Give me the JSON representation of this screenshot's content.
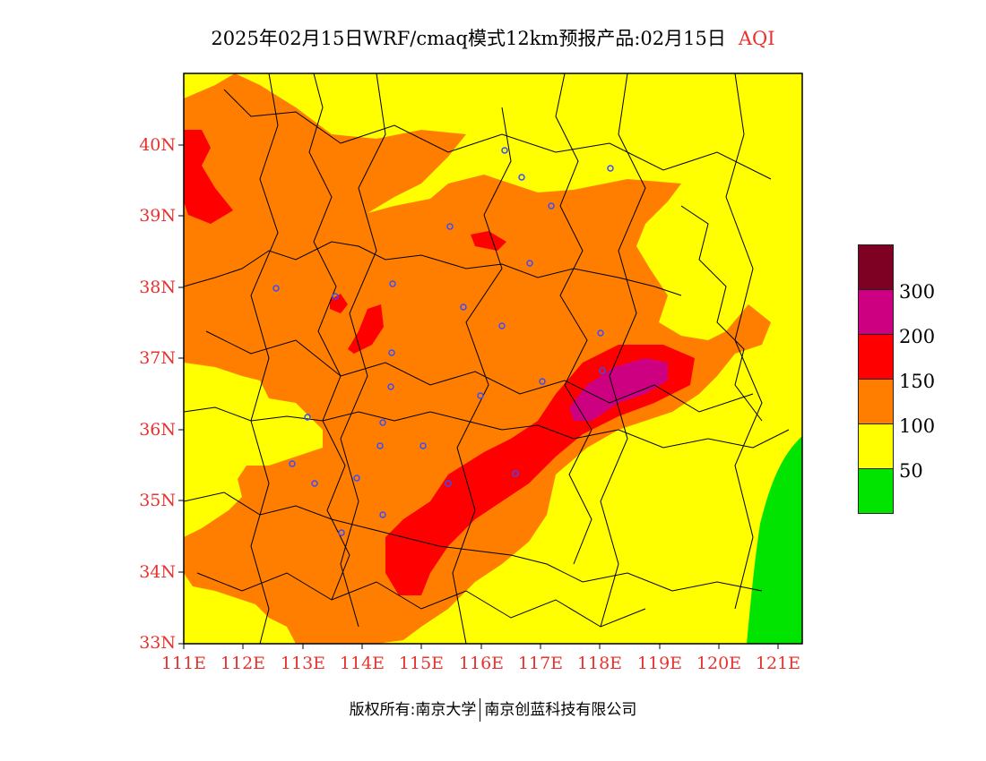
{
  "title": {
    "text": "2025年02月15日WRF/cmaq模式12km预报产品:02月15日",
    "tag": "AQI"
  },
  "colors": {
    "good": "#00e400",
    "moderate": "#ffff00",
    "usg": "#ff7e00",
    "unhealthy": "#ff0000",
    "very_unhealthy": "#cc0080",
    "hazardous": "#7e0023",
    "axis_label": "#e8322d",
    "city_marker": "#3a4cff",
    "border": "#000000"
  },
  "axes": {
    "lat_labels": [
      "40N",
      "39N",
      "38N",
      "37N",
      "36N",
      "35N",
      "34N",
      "33N"
    ],
    "lon_labels": [
      "111E",
      "112E",
      "113E",
      "114E",
      "115E",
      "116E",
      "117E",
      "118E",
      "119E",
      "120E",
      "121E"
    ],
    "lat_range": [
      33,
      41
    ],
    "lon_range": [
      111,
      121.3
    ]
  },
  "legend": {
    "ticks": [
      "300",
      "200",
      "150",
      "100",
      "50"
    ],
    "colors": [
      "#7e0023",
      "#cc0080",
      "#ff0000",
      "#ff7e00",
      "#ffff00",
      "#00e400"
    ]
  },
  "copyright": {
    "left": "版权所有:南京大学",
    "right": "南京创蓝科技有限公司"
  }
}
